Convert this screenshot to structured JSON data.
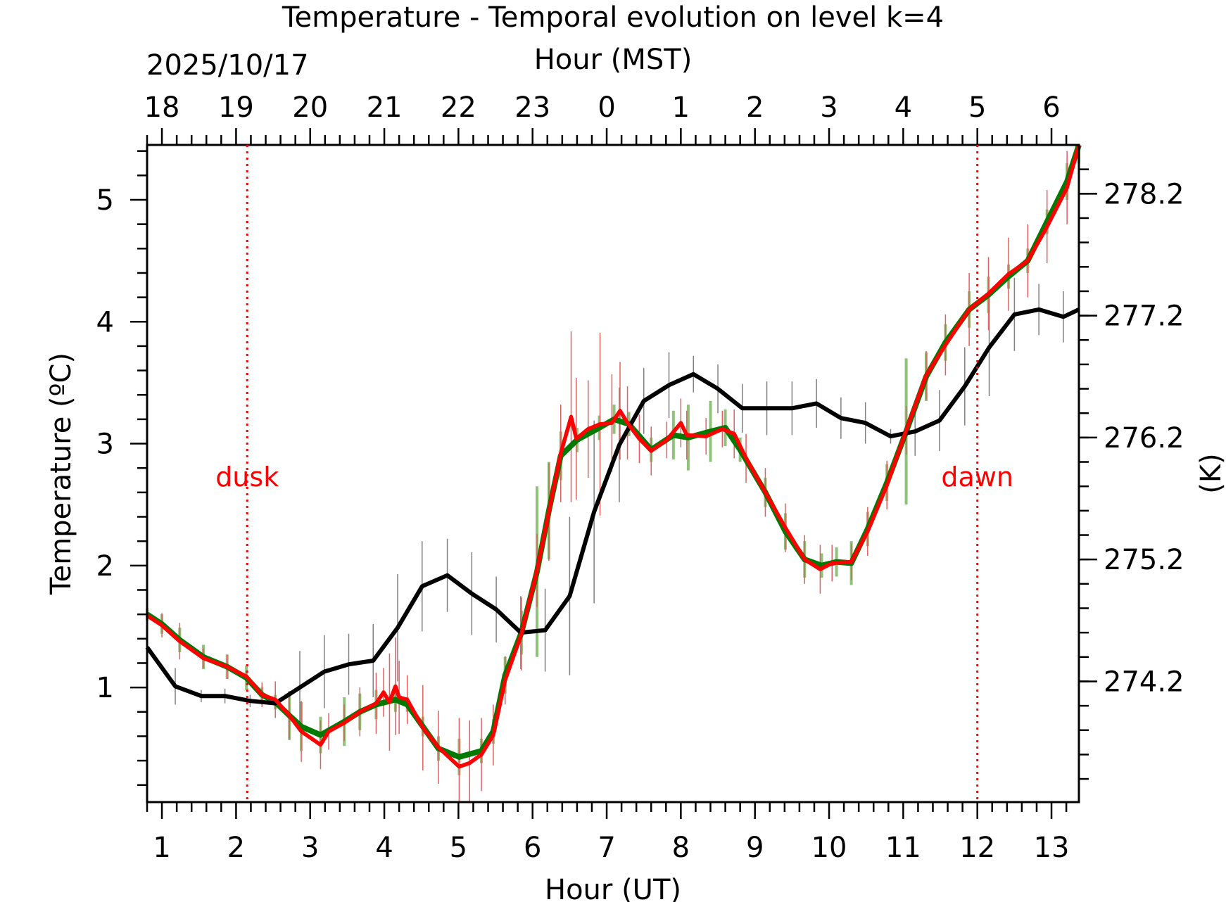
{
  "chart_data": {
    "type": "line",
    "title": "Temperature - Temporal evolution on level k=4",
    "xlabel": "Hour (UT)",
    "xlabel_top": "Hour (MST)",
    "ylabel": "Temperature (ºC)",
    "ylabel_right": "(K)",
    "date_label": "2025/10/17",
    "xlim": [
      0.8,
      13.37
    ],
    "ylim": [
      0.06,
      5.45
    ],
    "x_ticks": [
      1,
      2,
      3,
      4,
      5,
      6,
      7,
      8,
      9,
      10,
      11,
      12,
      13
    ],
    "x_tick_labels": [
      "1",
      "2",
      "3",
      "4",
      "5",
      "6",
      "7",
      "8",
      "9",
      "10",
      "11",
      "12",
      "13"
    ],
    "x_top_tick_labels": [
      "18",
      "19",
      "20",
      "21",
      "22",
      "23",
      "0",
      "1",
      "2",
      "3",
      "4",
      "5",
      "6"
    ],
    "y_ticks": [
      1,
      2,
      3,
      4,
      5
    ],
    "y_tick_labels": [
      "1",
      "2",
      "3",
      "4",
      "5"
    ],
    "y_right_ticks_K": [
      274.2,
      275.2,
      276.2,
      277.2,
      278.2
    ],
    "y_right_tick_labels": [
      "274.2",
      "275.2",
      "276.2",
      "277.2",
      "278.2"
    ],
    "grid": false,
    "annotations": [
      {
        "label": "dusk",
        "x": 2.15
      },
      {
        "label": "dawn",
        "x": 12.0
      }
    ],
    "colors": {
      "black": "#000000",
      "red": "#ff0000",
      "green": "#007a00",
      "green_err": "#8fc27a",
      "black_err": "#808080",
      "red_err": "#e06060"
    },
    "series": [
      {
        "name": "black",
        "x": [
          0.8,
          1.18,
          1.53,
          1.85,
          2.19,
          2.53,
          2.86,
          3.19,
          3.52,
          3.85,
          4.18,
          4.51,
          4.85,
          5.18,
          5.51,
          5.84,
          6.17,
          6.5,
          6.83,
          7.17,
          7.5,
          7.84,
          8.17,
          8.5,
          8.83,
          9.16,
          9.5,
          9.83,
          10.16,
          10.49,
          10.83,
          11.16,
          11.49,
          11.83,
          12.16,
          12.5,
          12.83,
          13.16,
          13.37
        ],
        "y": [
          1.33,
          1.01,
          0.93,
          0.93,
          0.89,
          0.87,
          1.0,
          1.13,
          1.19,
          1.22,
          1.49,
          1.83,
          1.92,
          1.77,
          1.64,
          1.45,
          1.47,
          1.75,
          2.44,
          2.99,
          3.35,
          3.48,
          3.57,
          3.45,
          3.29,
          3.29,
          3.29,
          3.33,
          3.21,
          3.17,
          3.06,
          3.1,
          3.19,
          3.47,
          3.79,
          4.06,
          4.1,
          4.04,
          4.1
        ],
        "err": [
          0.38,
          0.15,
          0.05,
          0.06,
          0.05,
          0.05,
          0.3,
          0.3,
          0.25,
          0.3,
          0.44,
          0.37,
          0.3,
          0.34,
          0.27,
          0.3,
          0.34,
          0.65,
          0.75,
          0.47,
          0.27,
          0.27,
          0.15,
          0.2,
          0.2,
          0.22,
          0.22,
          0.2,
          0.17,
          0.17,
          0.06,
          0.2,
          0.25,
          0.32,
          0.4,
          0.3,
          0.21,
          0.21,
          0.2
        ]
      },
      {
        "name": "green",
        "x": [
          0.8,
          1.0,
          1.24,
          1.56,
          1.88,
          2.14,
          2.35,
          2.53,
          2.72,
          2.88,
          3.14,
          3.46,
          3.67,
          3.89,
          4.15,
          4.31,
          4.52,
          4.73,
          5.01,
          5.31,
          5.47,
          5.63,
          5.85,
          6.06,
          6.22,
          6.38,
          6.6,
          6.9,
          7.1,
          7.3,
          7.6,
          7.9,
          8.1,
          8.4,
          8.6,
          8.8,
          9.14,
          9.41,
          9.67,
          9.9,
          10.1,
          10.3,
          10.52,
          10.78,
          11.04,
          11.31,
          11.57,
          11.89,
          12.15,
          12.42,
          12.68,
          12.94,
          13.21,
          13.37
        ],
        "y": [
          1.6,
          1.52,
          1.39,
          1.25,
          1.17,
          1.08,
          0.94,
          0.88,
          0.77,
          0.68,
          0.61,
          0.72,
          0.8,
          0.86,
          0.9,
          0.86,
          0.68,
          0.5,
          0.43,
          0.48,
          0.64,
          1.1,
          1.45,
          1.95,
          2.45,
          2.9,
          3.03,
          3.13,
          3.2,
          3.16,
          2.95,
          3.07,
          3.05,
          3.1,
          3.13,
          2.95,
          2.6,
          2.28,
          2.05,
          2.0,
          2.03,
          2.02,
          2.3,
          2.68,
          3.1,
          3.55,
          3.83,
          4.1,
          4.22,
          4.37,
          4.5,
          4.82,
          5.15,
          5.45
        ],
        "err": [
          0.05,
          0.08,
          0.1,
          0.1,
          0.1,
          0.1,
          0.06,
          0.06,
          0.2,
          0.2,
          0.15,
          0.2,
          0.15,
          0.12,
          0.1,
          0.06,
          0.08,
          0.1,
          0.15,
          0.1,
          0.1,
          0.15,
          0.18,
          0.7,
          0.4,
          0.2,
          0.1,
          0.1,
          0.12,
          0.1,
          0.1,
          0.2,
          0.27,
          0.25,
          0.15,
          0.1,
          0.12,
          0.15,
          0.15,
          0.1,
          0.12,
          0.18,
          0.14,
          0.15,
          0.6,
          0.2,
          0.15,
          0.15,
          0.15,
          0.1,
          0.1,
          0.1,
          0.15,
          0.15
        ]
      },
      {
        "name": "red",
        "x": [
          0.8,
          1.0,
          1.24,
          1.56,
          1.88,
          2.14,
          2.35,
          2.53,
          2.72,
          2.88,
          3.14,
          3.25,
          3.46,
          3.67,
          3.89,
          3.99,
          4.07,
          4.15,
          4.2,
          4.31,
          4.52,
          4.73,
          5.01,
          5.15,
          5.31,
          5.47,
          5.63,
          5.85,
          6.06,
          6.22,
          6.38,
          6.52,
          6.59,
          6.75,
          6.91,
          7.07,
          7.18,
          7.28,
          7.44,
          7.6,
          7.81,
          8.0,
          8.08,
          8.34,
          8.56,
          8.72,
          8.88,
          9.14,
          9.41,
          9.67,
          9.88,
          10.04,
          10.3,
          10.52,
          10.78,
          11.04,
          11.31,
          11.57,
          11.89,
          12.15,
          12.42,
          12.68,
          12.94,
          13.21,
          13.37
        ],
        "y": [
          1.59,
          1.51,
          1.38,
          1.24,
          1.17,
          1.09,
          0.94,
          0.9,
          0.77,
          0.64,
          0.53,
          0.64,
          0.71,
          0.8,
          0.87,
          0.96,
          0.88,
          1.01,
          0.92,
          0.9,
          0.67,
          0.51,
          0.35,
          0.38,
          0.45,
          0.61,
          1.06,
          1.44,
          1.96,
          2.44,
          2.92,
          3.22,
          3.04,
          3.12,
          3.16,
          3.17,
          3.27,
          3.17,
          3.04,
          2.94,
          3.03,
          3.17,
          3.07,
          3.06,
          3.12,
          3.08,
          2.88,
          2.6,
          2.31,
          2.05,
          1.97,
          2.02,
          2.03,
          2.28,
          2.66,
          3.11,
          3.56,
          3.81,
          4.1,
          4.23,
          4.39,
          4.5,
          4.78,
          5.1,
          5.45
        ],
        "err": [
          0.3,
          0.1,
          0.15,
          0.08,
          0.1,
          0.05,
          0.1,
          0.15,
          0.2,
          0.25,
          0.2,
          0.15,
          0.15,
          0.2,
          0.25,
          0.2,
          0.4,
          0.4,
          0.3,
          0.2,
          0.35,
          0.3,
          0.4,
          0.35,
          0.3,
          0.25,
          0.2,
          0.3,
          0.3,
          0.4,
          0.4,
          0.7,
          0.5,
          0.4,
          0.75,
          0.4,
          0.4,
          0.3,
          0.2,
          0.2,
          0.15,
          0.2,
          0.2,
          0.15,
          0.15,
          0.2,
          0.2,
          0.2,
          0.2,
          0.2,
          0.2,
          0.15,
          0.15,
          0.2,
          0.2,
          0.2,
          0.2,
          0.25,
          0.3,
          0.3,
          0.3,
          0.3,
          0.3,
          0.3,
          0.1
        ]
      }
    ]
  }
}
